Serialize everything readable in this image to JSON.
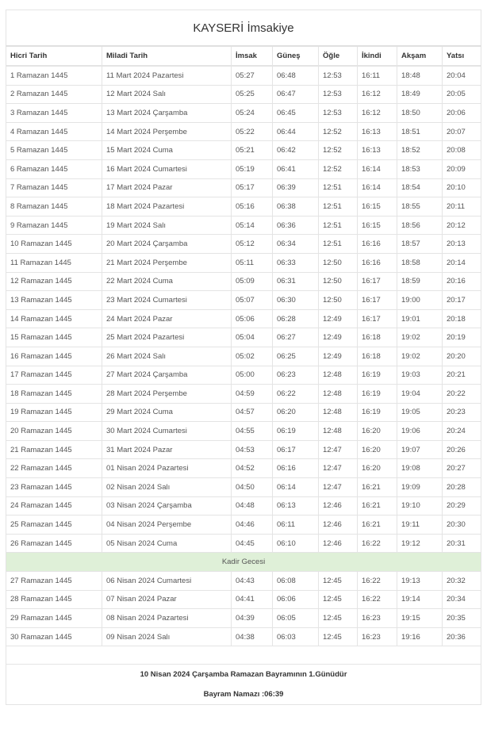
{
  "title": "KAYSERİ İmsakiye",
  "columns": [
    "Hicri Tarih",
    "Miladi Tarih",
    "İmsak",
    "Güneş",
    "Öğle",
    "İkindi",
    "Akşam",
    "Yatsı"
  ],
  "rows_before": [
    [
      "1 Ramazan 1445",
      "11 Mart 2024 Pazartesi",
      "05:27",
      "06:48",
      "12:53",
      "16:11",
      "18:48",
      "20:04"
    ],
    [
      "2 Ramazan 1445",
      "12 Mart 2024 Salı",
      "05:25",
      "06:47",
      "12:53",
      "16:12",
      "18:49",
      "20:05"
    ],
    [
      "3 Ramazan 1445",
      "13 Mart 2024 Çarşamba",
      "05:24",
      "06:45",
      "12:53",
      "16:12",
      "18:50",
      "20:06"
    ],
    [
      "4 Ramazan 1445",
      "14 Mart 2024 Perşembe",
      "05:22",
      "06:44",
      "12:52",
      "16:13",
      "18:51",
      "20:07"
    ],
    [
      "5 Ramazan 1445",
      "15 Mart 2024 Cuma",
      "05:21",
      "06:42",
      "12:52",
      "16:13",
      "18:52",
      "20:08"
    ],
    [
      "6 Ramazan 1445",
      "16 Mart 2024 Cumartesi",
      "05:19",
      "06:41",
      "12:52",
      "16:14",
      "18:53",
      "20:09"
    ],
    [
      "7 Ramazan 1445",
      "17 Mart 2024 Pazar",
      "05:17",
      "06:39",
      "12:51",
      "16:14",
      "18:54",
      "20:10"
    ],
    [
      "8 Ramazan 1445",
      "18 Mart 2024 Pazartesi",
      "05:16",
      "06:38",
      "12:51",
      "16:15",
      "18:55",
      "20:11"
    ],
    [
      "9 Ramazan 1445",
      "19 Mart 2024 Salı",
      "05:14",
      "06:36",
      "12:51",
      "16:15",
      "18:56",
      "20:12"
    ],
    [
      "10 Ramazan 1445",
      "20 Mart 2024 Çarşamba",
      "05:12",
      "06:34",
      "12:51",
      "16:16",
      "18:57",
      "20:13"
    ],
    [
      "11 Ramazan 1445",
      "21 Mart 2024 Perşembe",
      "05:11",
      "06:33",
      "12:50",
      "16:16",
      "18:58",
      "20:14"
    ],
    [
      "12 Ramazan 1445",
      "22 Mart 2024 Cuma",
      "05:09",
      "06:31",
      "12:50",
      "16:17",
      "18:59",
      "20:16"
    ],
    [
      "13 Ramazan 1445",
      "23 Mart 2024 Cumartesi",
      "05:07",
      "06:30",
      "12:50",
      "16:17",
      "19:00",
      "20:17"
    ],
    [
      "14 Ramazan 1445",
      "24 Mart 2024 Pazar",
      "05:06",
      "06:28",
      "12:49",
      "16:17",
      "19:01",
      "20:18"
    ],
    [
      "15 Ramazan 1445",
      "25 Mart 2024 Pazartesi",
      "05:04",
      "06:27",
      "12:49",
      "16:18",
      "19:02",
      "20:19"
    ],
    [
      "16 Ramazan 1445",
      "26 Mart 2024 Salı",
      "05:02",
      "06:25",
      "12:49",
      "16:18",
      "19:02",
      "20:20"
    ],
    [
      "17 Ramazan 1445",
      "27 Mart 2024 Çarşamba",
      "05:00",
      "06:23",
      "12:48",
      "16:19",
      "19:03",
      "20:21"
    ],
    [
      "18 Ramazan 1445",
      "28 Mart 2024 Perşembe",
      "04:59",
      "06:22",
      "12:48",
      "16:19",
      "19:04",
      "20:22"
    ],
    [
      "19 Ramazan 1445",
      "29 Mart 2024 Cuma",
      "04:57",
      "06:20",
      "12:48",
      "16:19",
      "19:05",
      "20:23"
    ],
    [
      "20 Ramazan 1445",
      "30 Mart 2024 Cumartesi",
      "04:55",
      "06:19",
      "12:48",
      "16:20",
      "19:06",
      "20:24"
    ],
    [
      "21 Ramazan 1445",
      "31 Mart 2024 Pazar",
      "04:53",
      "06:17",
      "12:47",
      "16:20",
      "19:07",
      "20:26"
    ],
    [
      "22 Ramazan 1445",
      "01 Nisan 2024 Pazartesi",
      "04:52",
      "06:16",
      "12:47",
      "16:20",
      "19:08",
      "20:27"
    ],
    [
      "23 Ramazan 1445",
      "02 Nisan 2024 Salı",
      "04:50",
      "06:14",
      "12:47",
      "16:21",
      "19:09",
      "20:28"
    ],
    [
      "24 Ramazan 1445",
      "03 Nisan 2024 Çarşamba",
      "04:48",
      "06:13",
      "12:46",
      "16:21",
      "19:10",
      "20:29"
    ],
    [
      "25 Ramazan 1445",
      "04 Nisan 2024 Perşembe",
      "04:46",
      "06:11",
      "12:46",
      "16:21",
      "19:11",
      "20:30"
    ],
    [
      "26 Ramazan 1445",
      "05 Nisan 2024 Cuma",
      "04:45",
      "06:10",
      "12:46",
      "16:22",
      "19:12",
      "20:31"
    ]
  ],
  "kadir_label": "Kadir Gecesi",
  "highlight_color": "#dff0d8",
  "rows_after": [
    [
      "27 Ramazan 1445",
      "06 Nisan 2024 Cumartesi",
      "04:43",
      "06:08",
      "12:45",
      "16:22",
      "19:13",
      "20:32"
    ],
    [
      "28 Ramazan 1445",
      "07 Nisan 2024 Pazar",
      "04:41",
      "06:06",
      "12:45",
      "16:22",
      "19:14",
      "20:34"
    ],
    [
      "29 Ramazan 1445",
      "08 Nisan 2024 Pazartesi",
      "04:39",
      "06:05",
      "12:45",
      "16:23",
      "19:15",
      "20:35"
    ],
    [
      "30 Ramazan 1445",
      "09 Nisan 2024 Salı",
      "04:38",
      "06:03",
      "12:45",
      "16:23",
      "19:16",
      "20:36"
    ]
  ],
  "footer": {
    "bayram_note": "10 Nisan 2024 Çarşamba Ramazan Bayramının 1.Günüdür",
    "bayram_namazi": "Bayram Namazı :06:39"
  }
}
